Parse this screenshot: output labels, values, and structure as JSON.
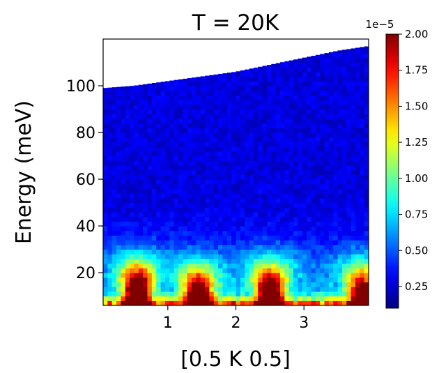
{
  "chart_data": {
    "type": "heatmap",
    "title": "T = 20K",
    "xlabel": "[0.5 K 0.5]",
    "ylabel": "Energy (meV)",
    "xlim": [
      0.05,
      3.95
    ],
    "ylim": [
      6,
      120
    ],
    "x_ticks": [
      {
        "value": 1,
        "label": "1"
      },
      {
        "value": 2,
        "label": "2"
      },
      {
        "value": 3,
        "label": "3"
      }
    ],
    "y_ticks": [
      {
        "value": 20,
        "label": "20"
      },
      {
        "value": 40,
        "label": "40"
      },
      {
        "value": 60,
        "label": "60"
      },
      {
        "value": 80,
        "label": "80"
      },
      {
        "value": 100,
        "label": "100"
      }
    ],
    "grid": false,
    "colormap": "jet",
    "colorbar": {
      "min": 0.1,
      "max": 2.0,
      "multiplier_label": "1e−5",
      "ticks": [
        {
          "value": 0.25,
          "label": "0.25"
        },
        {
          "value": 0.5,
          "label": "0.50"
        },
        {
          "value": 0.75,
          "label": "0.75"
        },
        {
          "value": 1.0,
          "label": "1.00"
        },
        {
          "value": 1.25,
          "label": "1.25"
        },
        {
          "value": 1.5,
          "label": "1.50"
        },
        {
          "value": 1.75,
          "label": "1.75"
        },
        {
          "value": 2.0,
          "label": "2.00"
        }
      ]
    },
    "coverage_upper_energy": {
      "k": [
        0.05,
        0.5,
        1.0,
        1.5,
        2.0,
        2.5,
        3.0,
        3.5,
        3.95
      ],
      "energy": [
        99,
        100,
        102,
        104,
        106,
        109,
        112,
        115,
        117
      ]
    },
    "intensity_peaks": [
      {
        "k": 0.55,
        "energy_peak": 10,
        "intensity": 2.0
      },
      {
        "k": 1.45,
        "energy_peak": 8,
        "intensity": 1.8
      },
      {
        "k": 2.5,
        "energy_peak": 9,
        "intensity": 1.9
      },
      {
        "k": 3.85,
        "energy_peak": 9,
        "intensity": 1.6
      }
    ],
    "background_intensity": 0.2
  }
}
